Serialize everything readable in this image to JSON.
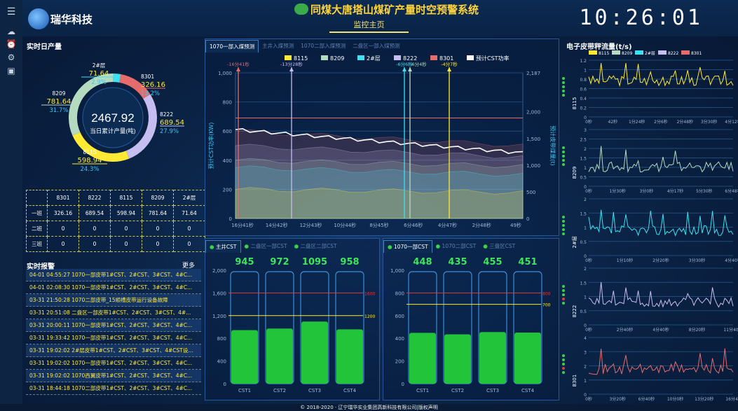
{
  "header": {
    "logo": "瑞华科技",
    "title": "同煤大唐塔山煤矿产量时空预警系统",
    "subtitle": "监控主页",
    "clock": "10:26:01"
  },
  "sidebar": {
    "icons": [
      "menu-icon",
      "cloud-icon",
      "alarm-clock-icon",
      "gear-icon",
      "window-icon"
    ]
  },
  "daily": {
    "title": "实时日产量",
    "center_value": "2467.92",
    "center_label": "当日累计产量(吨)",
    "segments": [
      {
        "name": "2#层",
        "value": "71.64",
        "pct": "2.9%",
        "frac": 0.029,
        "color": "#3fe0ef"
      },
      {
        "name": "8301",
        "value": "326.16",
        "pct": "13.2%",
        "frac": 0.132,
        "color": "#e66b6b"
      },
      {
        "name": "8222",
        "value": "689.54",
        "pct": "27.9%",
        "frac": 0.279,
        "color": "#c6bef1"
      },
      {
        "name": "8115",
        "value": "598.94",
        "pct": "24.3%",
        "frac": 0.243,
        "color": "#ffe933"
      },
      {
        "name": "8209",
        "value": "781.64",
        "pct": "31.7%",
        "frac": 0.317,
        "color": "#b4dabf"
      }
    ]
  },
  "shift_table": {
    "headers": [
      "",
      "8301",
      "8222",
      "8115",
      "8209",
      "2#层"
    ],
    "rows": [
      [
        "一班",
        "326.16",
        "689.54",
        "598.94",
        "781.64",
        "71.64"
      ],
      [
        "二班",
        "0",
        "0",
        "0",
        "0",
        "0"
      ],
      [
        "三班",
        "0",
        "0",
        "0",
        "0",
        "0"
      ]
    ]
  },
  "alarms": {
    "title": "实时报警",
    "more": "更多",
    "items": [
      "04-01 04:55:27  1070一部皮带1#CST、2#CST、3#CST、4#C...",
      "04-01 02:08:30  1070一部皮带1#CST、2#CST、3#CST、4#C...",
      "03-31 21:50:28  1070二部皮带_15顺槽皮带运行设备故障",
      "03-31 20:51:08  二盘区一部皮带1#CST、2#CST、3#CST、4#...",
      "03-31 20:00:11  1070一部皮带1#CST、2#CST、3#CST、4#C...",
      "03-31 19:33:42  1070一部皮带1#CST、2#CST、3#CST、4#C...",
      "03-31 19:02:02  2#层皮带1#CST、2#CST、3#CST、4#CST设...",
      "03-31 19:02:02  1070一部皮带1#CST、2#CST、3#CST、4#C...",
      "03-31 19:02:02  1070西翼皮带1#CST、2#CST、3#CST、4#C...",
      "03-31 18:44:18  1070二部皮带1#CST、2#CST、3#CST、4#C..."
    ]
  },
  "center_tabs": [
    "1070一部入煤预测",
    "主井入煤预测",
    "1070二部入煤预测",
    "二盘区一部入煤预测"
  ],
  "main_chart": {
    "legend": [
      {
        "name": "8115",
        "color": "#ffe933"
      },
      {
        "name": "8209",
        "color": "#b4dabf"
      },
      {
        "name": "2#层",
        "color": "#3fe0ef"
      },
      {
        "name": "8222",
        "color": "#c6bef1"
      },
      {
        "name": "8301",
        "color": "#e66b6b"
      },
      {
        "name": "预计CST功率",
        "color": "#ffffff"
      }
    ],
    "ylabel_left": "预计CST功率(KW)",
    "ylabel_right": "预计皮带煤量(t)",
    "yticks_left": [
      "0",
      "200",
      "400",
      "600",
      "800",
      "1,000"
    ],
    "yticks_right": [
      "0",
      "500",
      "1,000",
      "1,500",
      "2,000",
      "2,187"
    ],
    "xticks": [
      "16分41秒",
      "14分42秒",
      "12分43秒",
      "10分44秒",
      "8分45秒",
      "6分46秒",
      "4分47秒",
      "2分48秒",
      "49秒"
    ],
    "markers": [
      {
        "label": "-16分41秒",
        "color": "#e66b6b"
      },
      {
        "label": "-13分28秒",
        "color": "#c6bef1"
      },
      {
        "label": "-6分6秒",
        "color": "#3fe0ef"
      },
      {
        "label": "-6分4秒",
        "color": "#b4dabf"
      },
      {
        "label": "-4分7秒",
        "color": "#ffe933"
      }
    ]
  },
  "cst_left": {
    "tabs": [
      "主井CST",
      "二盘区一部CST",
      "二盘区二部CST"
    ],
    "values": [
      "945",
      "972",
      "1095",
      "958"
    ],
    "labels": [
      "CST1",
      "CST2",
      "CST3",
      "CST4"
    ],
    "yticks": [
      "0",
      "400",
      "800",
      "1,200",
      "1,600",
      "2,000"
    ],
    "ref_red": "1600",
    "ref_yellow": "1200",
    "nums": [
      945,
      972,
      1095,
      958
    ],
    "max": 2000,
    "red": 1600,
    "yellow": 1200
  },
  "cst_right": {
    "tabs": [
      "1070一部CST",
      "1070二部CST",
      "三盘区CST"
    ],
    "values": [
      "448",
      "435",
      "455",
      "451"
    ],
    "labels": [
      "CST1",
      "CST2",
      "CST3",
      "CST4"
    ],
    "yticks": [
      "0",
      "200",
      "400",
      "600",
      "800",
      "1,000"
    ],
    "ref_red": "800",
    "ref_yellow": "700",
    "nums": [
      448,
      435,
      455,
      451
    ],
    "max": 1000,
    "red": 800,
    "yellow": 700
  },
  "belt": {
    "title": "电子皮带秤流量(t/s)",
    "legend": [
      {
        "name": "8115",
        "color": "#ffe933"
      },
      {
        "name": "8209",
        "color": "#b4dabf"
      },
      {
        "name": "2#层",
        "color": "#3fe0ef"
      },
      {
        "name": "8222",
        "color": "#c6bef1"
      },
      {
        "name": "8301",
        "color": "#e66b6b"
      }
    ],
    "charts": [
      {
        "name": "8115",
        "color": "#ffe933",
        "xticks": [
          "0秒",
          "42秒",
          "1分24秒",
          "2分6秒",
          "2分48秒",
          "3分30秒",
          "4分12秒"
        ],
        "yticks": [
          "0",
          "0.2",
          "0.4",
          "0.6",
          "0.8",
          "1",
          "1.2"
        ]
      },
      {
        "name": "8209",
        "color": "#b4dabf",
        "xticks": [
          "0秒",
          "1分30秒",
          "3分0秒",
          "4分17秒",
          "5分30秒",
          "6分48秒"
        ],
        "yticks": [
          "0",
          "0.5",
          "1",
          "1.5",
          "2",
          "2.5",
          "3"
        ]
      },
      {
        "name": "2#层",
        "color": "#3fe0ef",
        "xticks": [
          "0秒",
          "1分10秒",
          "2分20秒",
          "3分30秒",
          "4分40秒"
        ],
        "yticks": [
          "0",
          "0.5",
          "1",
          "1.5",
          "2"
        ]
      },
      {
        "name": "8222",
        "color": "#c6bef1",
        "xticks": [
          "0秒",
          "2分40秒",
          "4分40秒",
          "8分20秒",
          "11分40秒"
        ],
        "yticks": [
          "0",
          "0.5",
          "1",
          "1.5",
          "2"
        ]
      },
      {
        "name": "8301",
        "color": "#e66b6b",
        "xticks": [
          "0秒",
          "3分20秒",
          "6分40秒",
          "10分0秒",
          "13分20秒",
          "16分40"
        ],
        "yticks": [
          "0",
          "1",
          "2",
          "3",
          "4"
        ]
      }
    ]
  },
  "footer": "© 2018-2020 · 辽宁瑞华实业集团高新科技有限公司|版权声明"
}
